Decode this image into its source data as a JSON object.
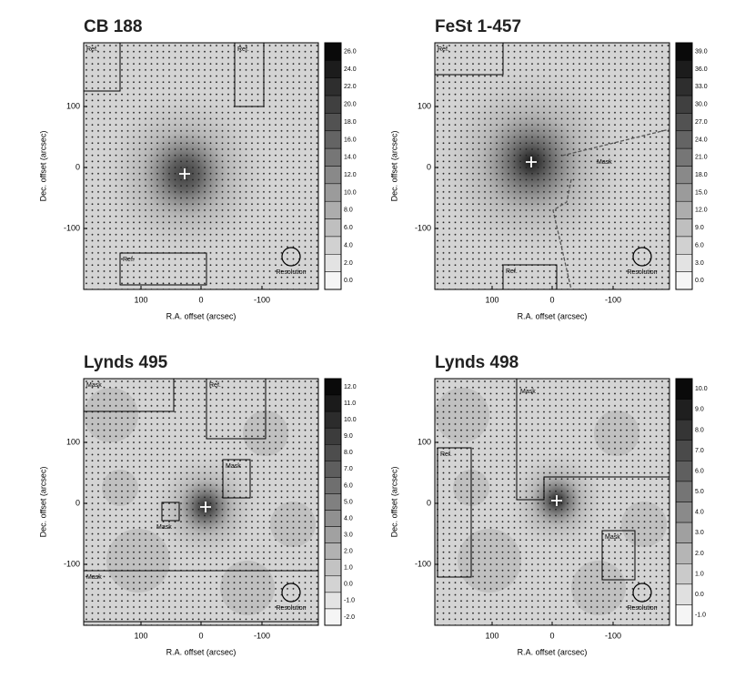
{
  "panels": [
    {
      "title": "CB 188",
      "x_label": "R.A. offset (arcsec)",
      "y_label": "Dec. offset (arcsec)",
      "x_ticks": [
        "100",
        "0",
        "-100"
      ],
      "y_ticks": [
        "100",
        "0",
        "-100"
      ],
      "colorbar": [
        "26.0",
        "24.0",
        "22.0",
        "20.0",
        "18.0",
        "16.0",
        "14.0",
        "12.0",
        "10.0",
        "8.0",
        "6.0",
        "4.0",
        "2.0",
        "0.0"
      ],
      "regions": [
        "Ref.",
        "Ref.",
        "Ref."
      ],
      "resolution": "Resolution"
    },
    {
      "title": "FeSt 1-457",
      "x_label": "R.A. offset (arcsec)",
      "y_label": "Dec. offset (arcsec)",
      "x_ticks": [
        "100",
        "0",
        "-100"
      ],
      "y_ticks": [
        "100",
        "0",
        "-100"
      ],
      "colorbar": [
        "39.0",
        "36.0",
        "33.0",
        "30.0",
        "27.0",
        "24.0",
        "21.0",
        "18.0",
        "15.0",
        "12.0",
        "9.0",
        "6.0",
        "3.0",
        "0.0"
      ],
      "regions": [
        "Ref.",
        "Ref.",
        "Mask"
      ],
      "resolution": "Resolution"
    },
    {
      "title": "Lynds 495",
      "x_label": "R.A. offset (arcsec)",
      "y_label": "Dec. offset (arcsec)",
      "x_ticks": [
        "100",
        "0",
        "-100"
      ],
      "y_ticks": [
        "100",
        "0",
        "-100"
      ],
      "colorbar": [
        "12.0",
        "11.0",
        "10.0",
        "9.0",
        "8.0",
        "7.0",
        "6.0",
        "5.0",
        "4.0",
        "3.0",
        "2.0",
        "1.0",
        "0.0",
        "-1.0",
        "-2.0"
      ],
      "regions": [
        "Mask",
        "Ref.",
        "Mask",
        "Mask",
        "Mask"
      ],
      "resolution": "Resolution"
    },
    {
      "title": "Lynds 498",
      "x_label": "R.A. offset (arcsec)",
      "y_label": "Dec. offset (arcsec)",
      "x_ticks": [
        "100",
        "0",
        "-100"
      ],
      "y_ticks": [
        "100",
        "0",
        "-100"
      ],
      "colorbar": [
        "10.0",
        "9.0",
        "8.0",
        "7.0",
        "6.0",
        "5.0",
        "4.0",
        "3.0",
        "2.0",
        "1.0",
        "0.0",
        "-1.0"
      ],
      "regions": [
        "Mask",
        "Ref.",
        "Mask"
      ],
      "resolution": "Resolution"
    }
  ]
}
